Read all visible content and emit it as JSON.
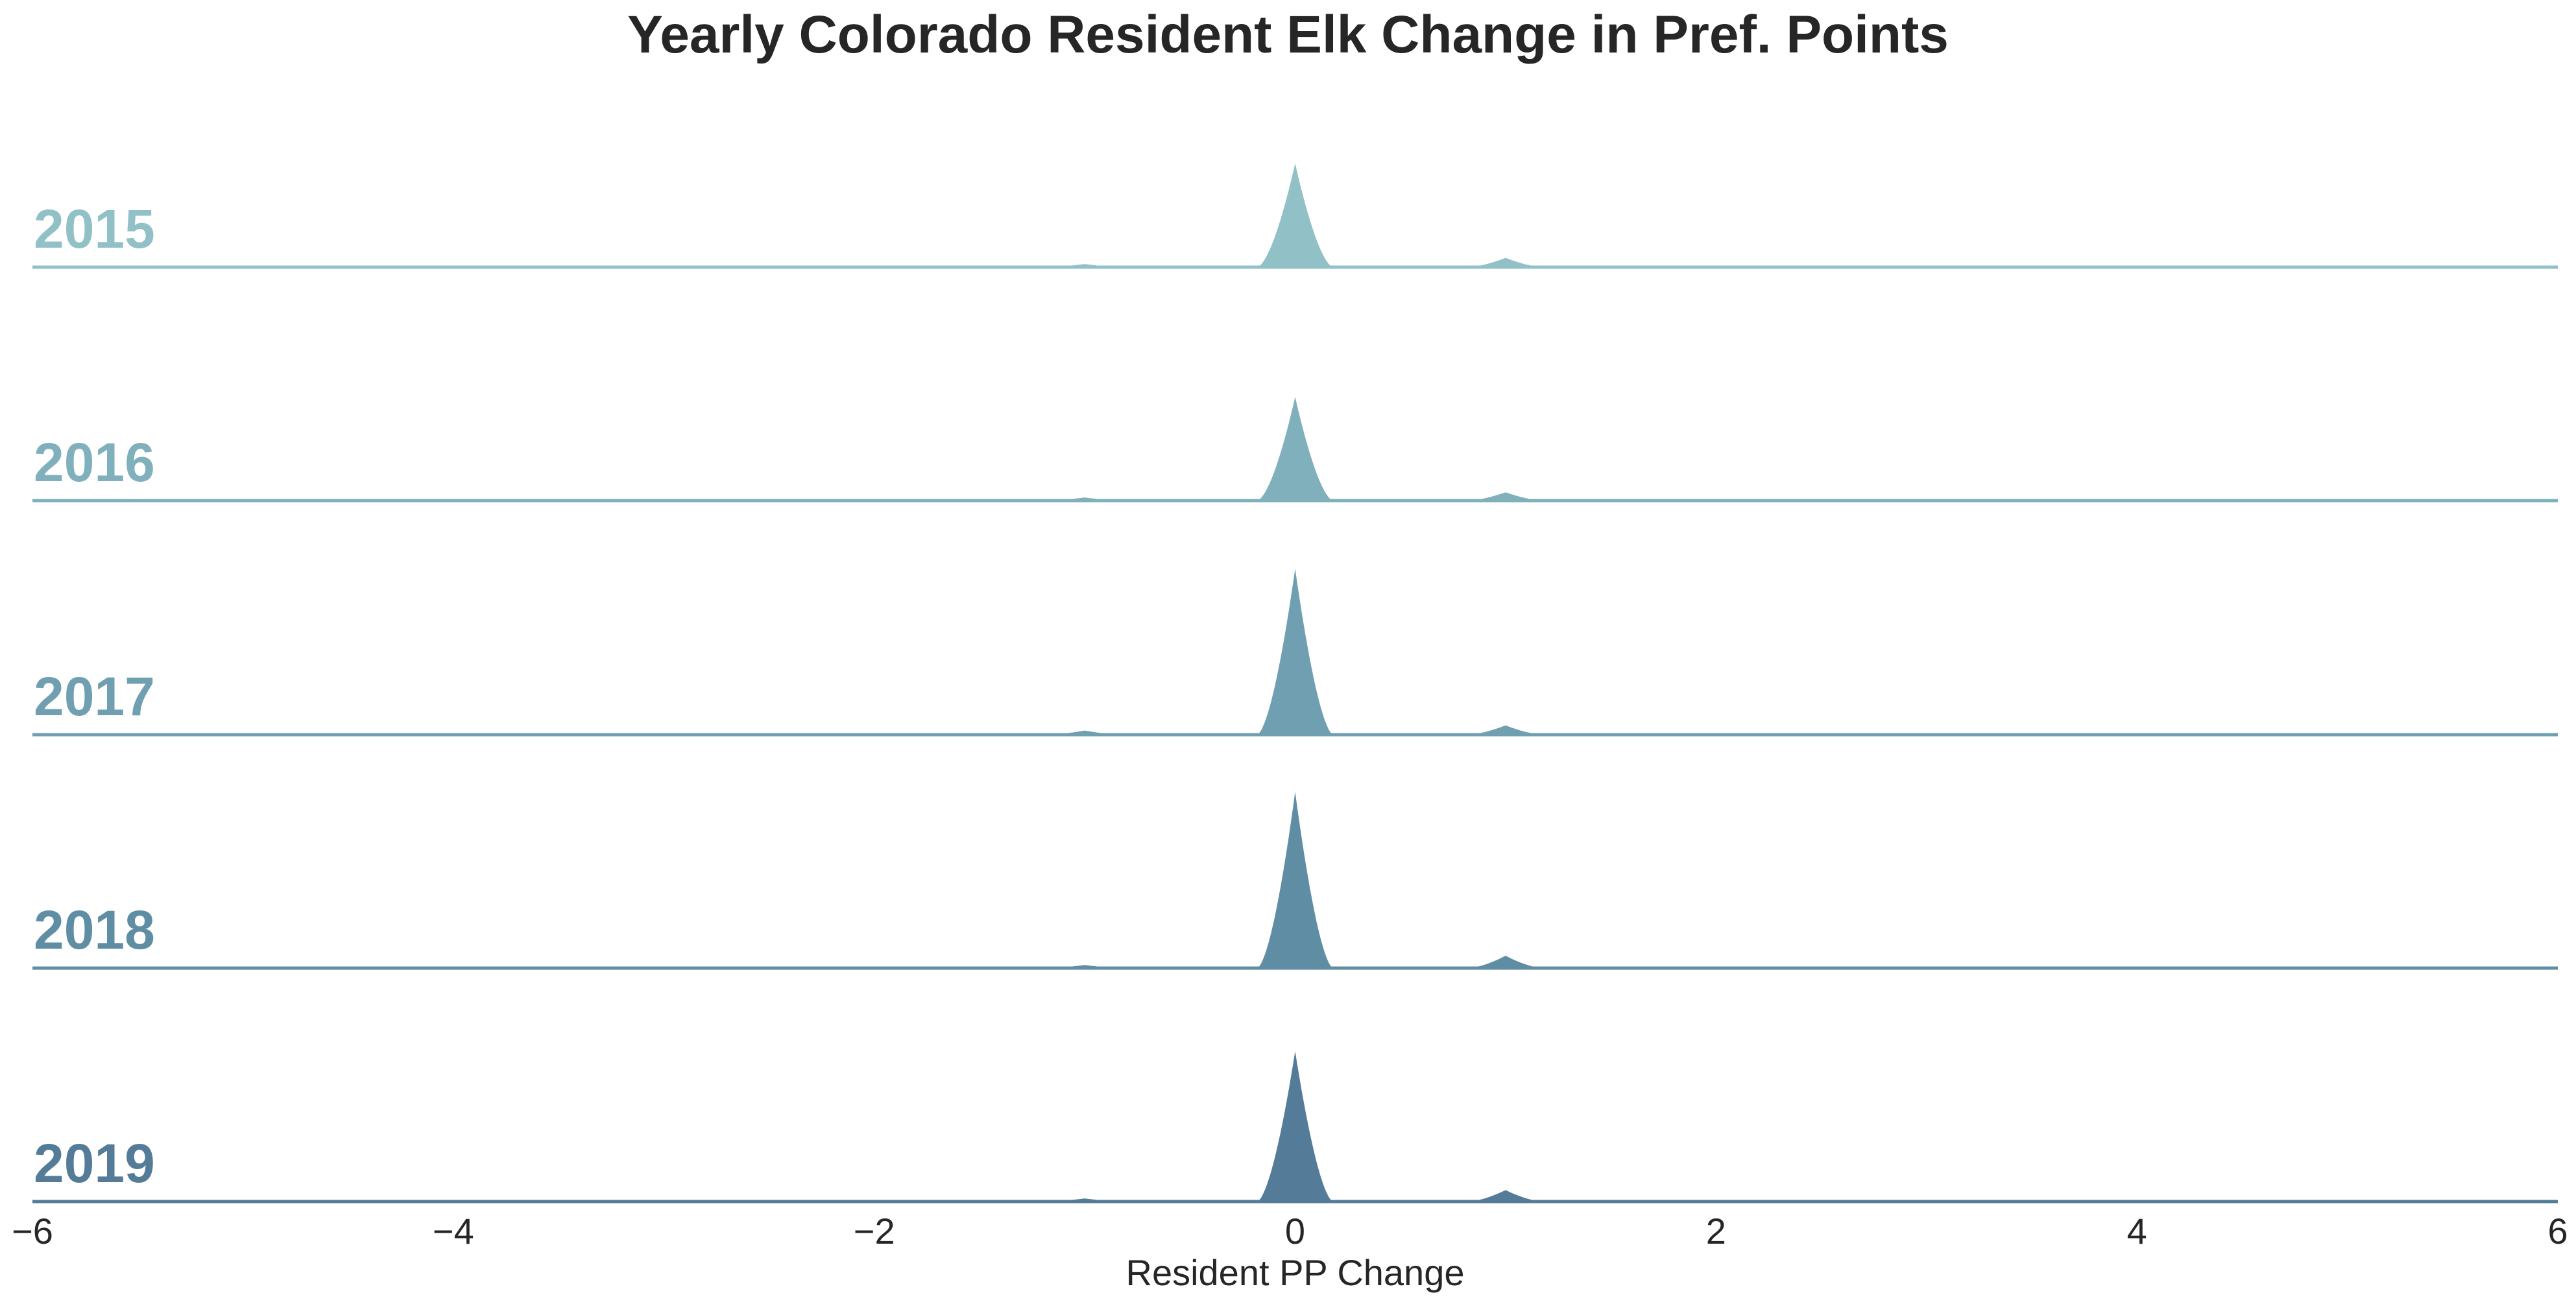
{
  "chart_data": {
    "type": "area",
    "title": "Yearly Colorado Resident Elk Change in Pref. Points",
    "xlabel": "Resident PP Change",
    "ylabel": "",
    "xlim": [
      -6,
      6
    ],
    "xticks": [
      -6,
      -4,
      -2,
      0,
      2,
      4,
      6
    ],
    "xtick_labels": [
      "−6",
      "−4",
      "−2",
      "0",
      "2",
      "4",
      "6"
    ],
    "grid": false,
    "legend": "none",
    "peak_halfwidth": 0.18,
    "series": [
      {
        "name": "2015",
        "color": "#91c1c6",
        "peaks": [
          {
            "x": -1,
            "density": 0.03
          },
          {
            "x": 0,
            "density": 1.0
          },
          {
            "x": 1,
            "density": 0.09
          }
        ]
      },
      {
        "name": "2016",
        "color": "#7fb0bb",
        "peaks": [
          {
            "x": -1,
            "density": 0.03
          },
          {
            "x": 0,
            "density": 1.0
          },
          {
            "x": 1,
            "density": 0.08
          }
        ]
      },
      {
        "name": "2017",
        "color": "#6f9fb0",
        "peaks": [
          {
            "x": -1,
            "density": 0.04
          },
          {
            "x": 0,
            "density": 1.6
          },
          {
            "x": 1,
            "density": 0.09
          }
        ]
      },
      {
        "name": "2018",
        "color": "#5f8ea4",
        "peaks": [
          {
            "x": -1,
            "density": 0.03
          },
          {
            "x": 0,
            "density": 1.7
          },
          {
            "x": 1,
            "density": 0.12
          }
        ]
      },
      {
        "name": "2019",
        "color": "#547c98",
        "peaks": [
          {
            "x": -1,
            "density": 0.03
          },
          {
            "x": 0,
            "density": 1.45
          },
          {
            "x": 1,
            "density": 0.11
          }
        ]
      }
    ]
  }
}
